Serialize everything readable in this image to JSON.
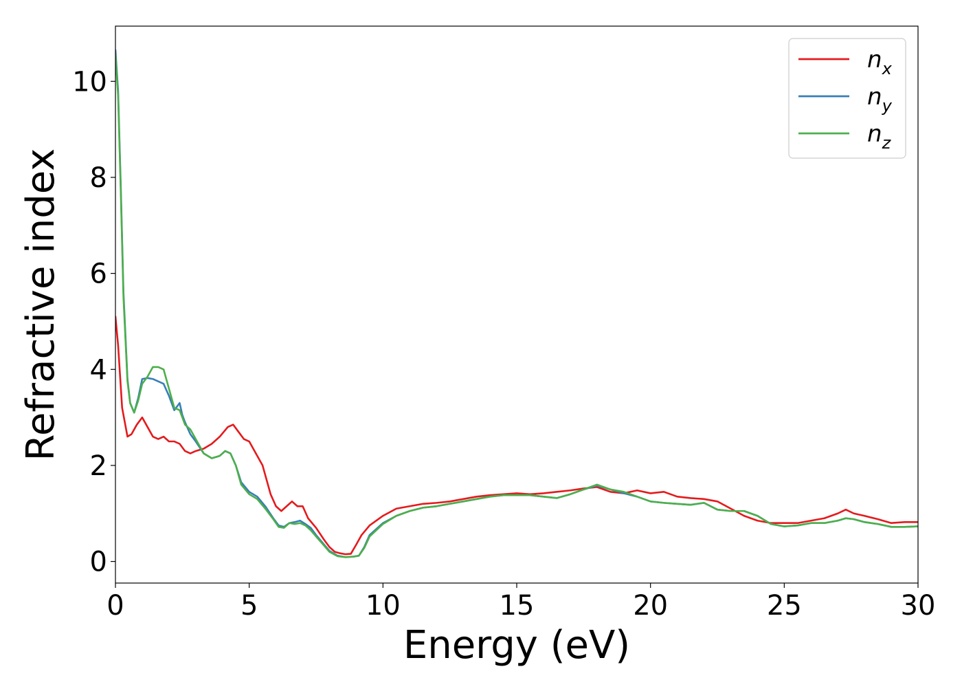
{
  "chart_data": {
    "type": "line",
    "title": "",
    "xlabel": "Energy (eV)",
    "ylabel": "Refractive index",
    "xlim": [
      0,
      30
    ],
    "ylim": [
      -0.45,
      11.15
    ],
    "xticks": [
      0,
      5,
      10,
      15,
      20,
      25,
      30
    ],
    "yticks": [
      0,
      2,
      4,
      6,
      8,
      10
    ],
    "grid": false,
    "legend_position": "top-right",
    "series": [
      {
        "name": "n_x",
        "label_base": "n",
        "label_sub": "x",
        "color": "#e41a1c",
        "x": [
          0,
          0.1,
          0.25,
          0.45,
          0.6,
          0.8,
          1.0,
          1.2,
          1.4,
          1.6,
          1.8,
          2.0,
          2.2,
          2.4,
          2.6,
          2.8,
          3.0,
          3.3,
          3.6,
          3.9,
          4.2,
          4.4,
          4.6,
          4.8,
          5.0,
          5.2,
          5.5,
          5.8,
          6.0,
          6.2,
          6.4,
          6.6,
          6.8,
          7.0,
          7.2,
          7.5,
          7.8,
          8.0,
          8.2,
          8.4,
          8.6,
          8.8,
          9.0,
          9.2,
          9.5,
          10.0,
          10.5,
          11.0,
          11.5,
          12.0,
          12.5,
          13.0,
          13.5,
          14.0,
          14.5,
          15.0,
          15.5,
          16.0,
          16.5,
          17.0,
          17.5,
          18.0,
          18.5,
          19.0,
          19.5,
          20.0,
          20.5,
          21.0,
          21.5,
          22.0,
          22.5,
          23.0,
          23.5,
          24.0,
          24.5,
          25.0,
          25.5,
          26.0,
          26.5,
          27.0,
          27.3,
          27.6,
          28.0,
          28.5,
          29.0,
          29.5,
          30.0
        ],
        "y": [
          5.1,
          4.5,
          3.2,
          2.6,
          2.65,
          2.85,
          3.0,
          2.8,
          2.6,
          2.55,
          2.6,
          2.5,
          2.5,
          2.45,
          2.3,
          2.25,
          2.3,
          2.35,
          2.45,
          2.6,
          2.8,
          2.85,
          2.7,
          2.55,
          2.5,
          2.3,
          2.0,
          1.4,
          1.15,
          1.05,
          1.15,
          1.25,
          1.15,
          1.15,
          0.9,
          0.7,
          0.45,
          0.3,
          0.2,
          0.17,
          0.15,
          0.16,
          0.35,
          0.55,
          0.75,
          0.95,
          1.1,
          1.15,
          1.2,
          1.22,
          1.25,
          1.3,
          1.35,
          1.38,
          1.4,
          1.42,
          1.4,
          1.42,
          1.45,
          1.48,
          1.52,
          1.55,
          1.45,
          1.42,
          1.48,
          1.42,
          1.45,
          1.35,
          1.32,
          1.3,
          1.25,
          1.1,
          0.95,
          0.85,
          0.8,
          0.8,
          0.8,
          0.85,
          0.9,
          1.0,
          1.08,
          1.0,
          0.95,
          0.88,
          0.8,
          0.82,
          0.82
        ]
      },
      {
        "name": "n_y",
        "label_base": "n",
        "label_sub": "y",
        "color": "#377eb8",
        "x": [
          0,
          0.1,
          0.2,
          0.3,
          0.45,
          0.55,
          0.7,
          0.85,
          1.0,
          1.2,
          1.4,
          1.6,
          1.8,
          2.0,
          2.2,
          2.4,
          2.5,
          2.6,
          2.8,
          3.0,
          3.3,
          3.6,
          3.9,
          4.1,
          4.3,
          4.5,
          4.7,
          5.0,
          5.3,
          5.6,
          5.9,
          6.1,
          6.3,
          6.5,
          6.7,
          6.9,
          7.1,
          7.3,
          7.5,
          7.8,
          8.0,
          8.3,
          8.6,
          8.9,
          9.1,
          9.3,
          9.5,
          10.0,
          10.5,
          11.0,
          11.5,
          12.0,
          12.5,
          13.0,
          13.5,
          14.0,
          14.5,
          15.0,
          15.5,
          16.0,
          16.5,
          17.0,
          17.5,
          18.0,
          18.5,
          19.0,
          19.5,
          20.0,
          20.5,
          21.0,
          21.5,
          22.0,
          22.5,
          23.0,
          23.5,
          24.0,
          24.5,
          25.0,
          25.5,
          26.0,
          26.5,
          27.0,
          27.3,
          27.6,
          28.0,
          28.5,
          29.0,
          29.5,
          30.0
        ],
        "y": [
          10.65,
          9.8,
          7.8,
          5.6,
          3.8,
          3.3,
          3.1,
          3.4,
          3.8,
          3.82,
          3.8,
          3.75,
          3.7,
          3.45,
          3.15,
          3.3,
          3.05,
          2.9,
          2.65,
          2.5,
          2.25,
          2.15,
          2.2,
          2.3,
          2.25,
          2.0,
          1.65,
          1.45,
          1.35,
          1.15,
          0.9,
          0.75,
          0.72,
          0.8,
          0.82,
          0.85,
          0.78,
          0.7,
          0.55,
          0.35,
          0.22,
          0.12,
          0.09,
          0.1,
          0.12,
          0.3,
          0.55,
          0.8,
          0.95,
          1.05,
          1.12,
          1.15,
          1.2,
          1.25,
          1.3,
          1.35,
          1.38,
          1.38,
          1.38,
          1.35,
          1.32,
          1.4,
          1.5,
          1.58,
          1.5,
          1.42,
          1.35,
          1.25,
          1.22,
          1.2,
          1.18,
          1.22,
          1.08,
          1.05,
          1.05,
          0.95,
          0.78,
          0.73,
          0.75,
          0.8,
          0.8,
          0.85,
          0.9,
          0.88,
          0.82,
          0.78,
          0.72,
          0.72,
          0.73
        ]
      },
      {
        "name": "n_z",
        "label_base": "n",
        "label_sub": "z",
        "color": "#4daf4a",
        "x": [
          0,
          0.1,
          0.2,
          0.3,
          0.45,
          0.55,
          0.7,
          0.85,
          1.0,
          1.2,
          1.4,
          1.6,
          1.8,
          2.0,
          2.2,
          2.4,
          2.6,
          2.8,
          3.0,
          3.3,
          3.6,
          3.9,
          4.1,
          4.3,
          4.5,
          4.7,
          5.0,
          5.3,
          5.6,
          5.9,
          6.1,
          6.3,
          6.5,
          6.7,
          6.9,
          7.1,
          7.3,
          7.5,
          7.8,
          8.0,
          8.3,
          8.6,
          8.9,
          9.1,
          9.3,
          9.5,
          10.0,
          10.5,
          11.0,
          11.5,
          12.0,
          12.5,
          13.0,
          13.5,
          14.0,
          14.5,
          15.0,
          15.5,
          16.0,
          16.5,
          17.0,
          17.5,
          18.0,
          18.5,
          19.0,
          19.5,
          20.0,
          20.5,
          21.0,
          21.5,
          22.0,
          22.5,
          23.0,
          23.5,
          24.0,
          24.5,
          25.0,
          25.5,
          26.0,
          26.5,
          27.0,
          27.3,
          27.6,
          28.0,
          28.5,
          29.0,
          29.5,
          30.0
        ],
        "y": [
          10.55,
          9.7,
          7.7,
          5.5,
          3.75,
          3.3,
          3.1,
          3.35,
          3.7,
          3.85,
          4.05,
          4.05,
          4.0,
          3.6,
          3.2,
          3.15,
          2.85,
          2.75,
          2.55,
          2.25,
          2.15,
          2.2,
          2.3,
          2.25,
          2.0,
          1.6,
          1.4,
          1.3,
          1.1,
          0.88,
          0.72,
          0.7,
          0.8,
          0.78,
          0.8,
          0.75,
          0.65,
          0.52,
          0.33,
          0.2,
          0.11,
          0.09,
          0.1,
          0.12,
          0.28,
          0.52,
          0.78,
          0.95,
          1.05,
          1.12,
          1.15,
          1.2,
          1.25,
          1.3,
          1.35,
          1.38,
          1.38,
          1.38,
          1.35,
          1.32,
          1.4,
          1.5,
          1.6,
          1.5,
          1.45,
          1.35,
          1.25,
          1.22,
          1.2,
          1.18,
          1.22,
          1.08,
          1.05,
          1.05,
          0.95,
          0.78,
          0.73,
          0.75,
          0.8,
          0.8,
          0.85,
          0.9,
          0.88,
          0.82,
          0.78,
          0.72,
          0.72,
          0.73
        ]
      }
    ]
  }
}
